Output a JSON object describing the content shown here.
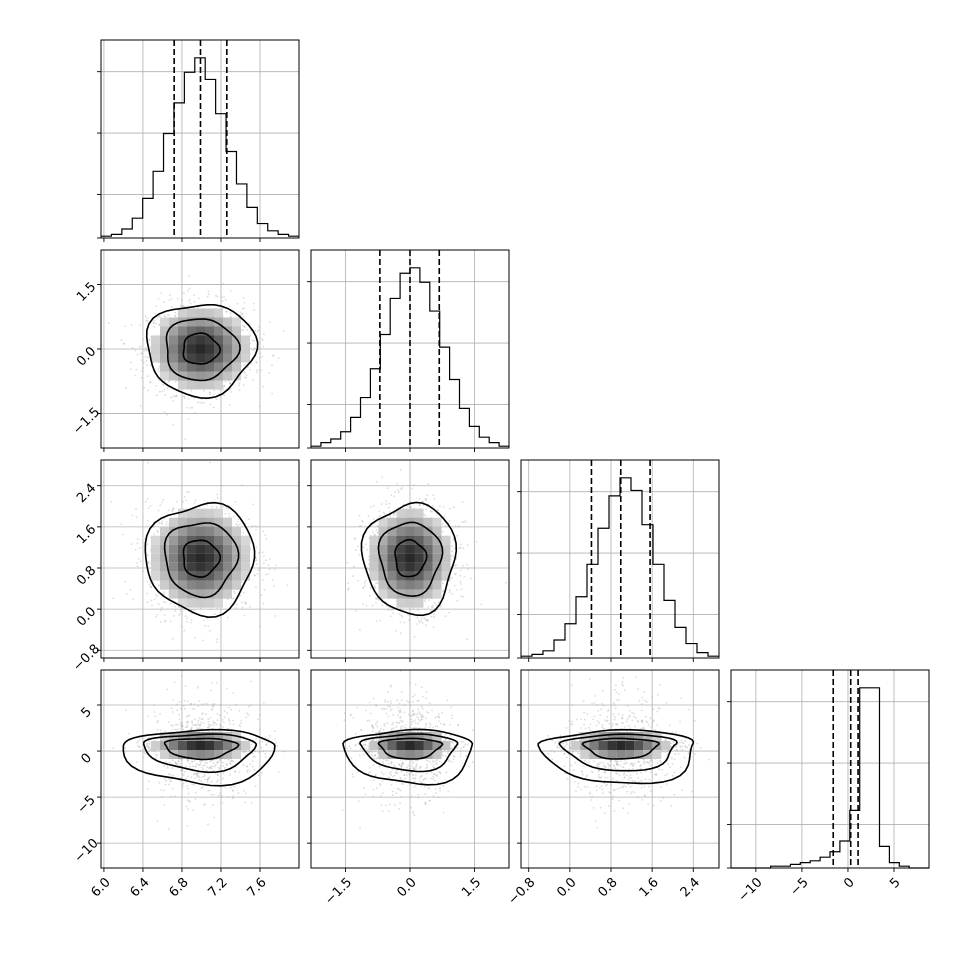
{
  "chart_data": {
    "type": "corner",
    "n_params": 4,
    "grid": true,
    "params": [
      {
        "range": [
          5.97,
          8.0
        ],
        "ticks": [
          6.0,
          6.4,
          6.8,
          7.2,
          7.6
        ],
        "tick_labels": [
          "6.0",
          "6.4",
          "6.8",
          "7.2",
          "7.6"
        ],
        "mean": 6.99,
        "sd": 0.27,
        "quantiles": [
          6.72,
          6.99,
          7.26
        ]
      },
      {
        "range": [
          -2.3,
          2.3
        ],
        "ticks": [
          -1.5,
          0.0,
          1.5
        ],
        "tick_labels": [
          "−1.5",
          "0.0",
          "1.5"
        ],
        "mean": 0.0,
        "sd": 0.52,
        "quantiles": [
          -0.7,
          0.0,
          0.68
        ]
      },
      {
        "range": [
          -0.95,
          2.9
        ],
        "ticks": [
          -0.8,
          0.0,
          0.8,
          1.6,
          2.4
        ],
        "tick_labels": [
          "−0.8",
          "0.0",
          "0.8",
          "1.6",
          "2.4"
        ],
        "mean": 0.99,
        "sd": 0.52,
        "quantiles": [
          0.42,
          0.99,
          1.56
        ]
      },
      {
        "range": [
          -12.7,
          8.8
        ],
        "ticks": [
          -10,
          -5,
          0,
          5
        ],
        "tick_labels": [
          "−10",
          "−5",
          "0",
          "5"
        ],
        "mean": 0.6,
        "sd": 1.5,
        "quantiles": [
          -1.6,
          0.3,
          1.1
        ]
      }
    ],
    "histograms": [
      {
        "param": 0,
        "counts": [
          1,
          2,
          5,
          11,
          22,
          37,
          58,
          75,
          92,
          100,
          88,
          69,
          48,
          30,
          17,
          8,
          4,
          2,
          1
        ]
      },
      {
        "param": 1,
        "counts": [
          1,
          3,
          5,
          9,
          17,
          28,
          44,
          63,
          83,
          97,
          100,
          92,
          76,
          56,
          38,
          22,
          12,
          6,
          3,
          1
        ]
      },
      {
        "param": 2,
        "counts": [
          1,
          2,
          4,
          10,
          19,
          34,
          52,
          72,
          90,
          100,
          93,
          74,
          52,
          32,
          17,
          8,
          3,
          1
        ]
      },
      {
        "param": 3,
        "counts": [
          0,
          0,
          0,
          0,
          1,
          1,
          2,
          3,
          4,
          6,
          9,
          15,
          32,
          100,
          100,
          12,
          3,
          1,
          0,
          0
        ]
      }
    ],
    "panels": [
      {
        "row": 1,
        "col": 0
      },
      {
        "row": 2,
        "col": 0
      },
      {
        "row": 2,
        "col": 1
      },
      {
        "row": 3,
        "col": 0
      },
      {
        "row": 3,
        "col": 1
      },
      {
        "row": 3,
        "col": 2
      }
    ]
  }
}
